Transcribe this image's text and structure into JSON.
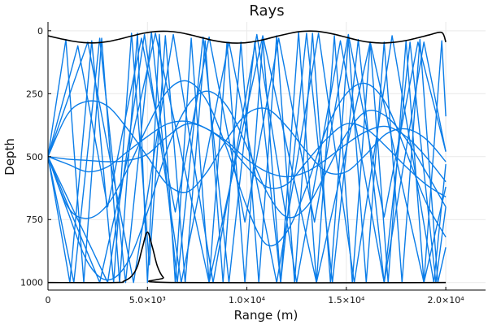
{
  "chart_data": {
    "type": "line",
    "title": "Rays",
    "xlabel": "Range (m)",
    "ylabel": "Depth",
    "xlim": [
      0,
      22000
    ],
    "ylim": [
      1030,
      -35
    ],
    "y_inverted": true,
    "grid": true,
    "legend": "none",
    "x_ticks": [
      {
        "value": 0,
        "label": "0"
      },
      {
        "value": 5000,
        "label": "5.0×10³"
      },
      {
        "value": 10000,
        "label": "1.0×10⁴"
      },
      {
        "value": 15000,
        "label": "1.5×10⁴"
      },
      {
        "value": 20000,
        "label": "2.0×10⁴"
      }
    ],
    "y_ticks": [
      {
        "value": 0,
        "label": "0"
      },
      {
        "value": 250,
        "label": "250"
      },
      {
        "value": 500,
        "label": "500"
      },
      {
        "value": 750,
        "label": "750"
      },
      {
        "value": 1000,
        "label": "1000"
      }
    ],
    "boundary_color": "#000000",
    "ray_color": "#0b7de8",
    "surface": {
      "x": [
        0,
        600,
        1200,
        1800,
        2400,
        3000,
        3600,
        4200,
        4800,
        5400,
        6000,
        6600,
        7200,
        7800,
        8400,
        9000,
        9600,
        10200,
        10800,
        11400,
        12000,
        12600,
        13200,
        13800,
        14400,
        15000,
        15600,
        16200,
        16800,
        17400,
        18000,
        18600,
        19200,
        19800,
        20000
      ],
      "y": [
        20,
        31,
        41,
        47,
        48,
        43,
        33,
        21,
        10,
        3,
        2,
        7,
        17,
        29,
        40,
        47,
        49,
        45,
        36,
        24,
        13,
        4,
        1,
        5,
        14,
        26,
        38,
        46,
        49,
        46,
        39,
        28,
        16,
        7,
        45
      ]
    },
    "seamount": {
      "x": [
        0,
        3400,
        3800,
        4200,
        4500,
        4750,
        5000,
        5250,
        5500,
        5800,
        6200,
        20000
      ],
      "y": [
        1000,
        1000,
        995,
        975,
        935,
        860,
        800,
        860,
        935,
        980,
        1000,
        1000
      ]
    },
    "steep_rays": [
      {
        "x": [
          0,
          900,
          1800,
          2700,
          3600,
          4500,
          5000,
          5600,
          6400,
          7200,
          8100,
          9000,
          9900,
          10800,
          11700,
          12600,
          13500,
          14400,
          15300,
          16200,
          17100,
          18000,
          18900,
          19800,
          20000
        ],
        "y": [
          500,
          35,
          1000,
          30,
          1000,
          10,
          1000,
          15,
          1000,
          30,
          1000,
          45,
          1000,
          35,
          1000,
          5,
          1000,
          20,
          1000,
          45,
          1000,
          40,
          1000,
          40,
          340
        ]
      },
      {
        "x": [
          0,
          1100,
          2200,
          3300,
          4200,
          5100,
          5900,
          6900,
          7900,
          8800,
          9700,
          10600,
          11500,
          12400,
          13300,
          14200,
          15100,
          16000,
          16900,
          17800,
          18700,
          19600,
          20000
        ],
        "y": [
          500,
          1000,
          40,
          1000,
          10,
          930,
          20,
          1000,
          40,
          1000,
          45,
          1000,
          20,
          1000,
          10,
          1000,
          30,
          1000,
          45,
          1000,
          35,
          1000,
          860
        ]
      },
      {
        "x": [
          0,
          2000,
          4300,
          6300,
          8300,
          10500,
          12500,
          14700,
          16900,
          18900,
          20000
        ],
        "y": [
          500,
          45,
          1000,
          15,
          1000,
          15,
          1000,
          40,
          1000,
          45,
          480
        ]
      },
      {
        "x": [
          0,
          2600,
          5400,
          8100,
          10800,
          13500,
          16200,
          18900,
          20000
        ],
        "y": [
          500,
          1000,
          10,
          1000,
          20,
          1000,
          45,
          1000,
          620
        ]
      },
      {
        "x": [
          0,
          1500,
          3000,
          4700,
          6400,
          8100,
          9900,
          11600,
          13400,
          15100,
          16900,
          18600,
          20000
        ],
        "y": [
          500,
          60,
          700,
          30,
          720,
          25,
          760,
          30,
          760,
          15,
          740,
          45,
          480
        ]
      },
      {
        "x": [
          0,
          3000,
          4850,
          6700,
          9100,
          11500,
          13600,
          15400,
          17300,
          19400,
          20000
        ],
        "y": [
          500,
          1000,
          15,
          1000,
          45,
          1000,
          10,
          1000,
          20,
          1000,
          530
        ]
      },
      {
        "x": [
          0,
          1300,
          2600,
          3900,
          5200,
          6500,
          7800,
          9100,
          10400,
          11700,
          13000,
          14300,
          15600,
          16900,
          18200,
          19500,
          20000
        ],
        "y": [
          500,
          1000,
          30,
          1000,
          5,
          1000,
          25,
          1000,
          45,
          1000,
          10,
          1000,
          35,
          1000,
          45,
          1000,
          700
        ]
      }
    ],
    "smooth_rays": [
      {
        "x": [
          0,
          1000,
          2000,
          3000,
          4000,
          5000,
          6000,
          7000,
          8000,
          9000,
          10000,
          11000,
          12000,
          13000,
          14000,
          15000,
          16000,
          17000,
          18000,
          19000,
          20000
        ],
        "y": [
          500,
          330,
          280,
          300,
          390,
          500,
          610,
          640,
          560,
          430,
          330,
          310,
          380,
          480,
          560,
          560,
          490,
          410,
          390,
          430,
          520
        ]
      },
      {
        "x": [
          0,
          1000,
          2000,
          3000,
          4000,
          5000,
          6000,
          7000,
          8000,
          9000,
          10000,
          11000,
          12000,
          13000,
          14000,
          15000,
          16000,
          17000,
          18000,
          19000,
          20000
        ],
        "y": [
          500,
          700,
          745,
          690,
          550,
          380,
          240,
          200,
          280,
          470,
          700,
          850,
          800,
          620,
          390,
          250,
          210,
          290,
          480,
          680,
          820
        ]
      },
      {
        "x": [
          0,
          1000,
          2000,
          3000,
          4000,
          5000,
          6000,
          7000,
          8000,
          9000,
          10000,
          11000,
          12000,
          13000,
          14000,
          15000,
          16000,
          17000,
          18000,
          19000,
          20000
        ],
        "y": [
          500,
          510,
          515,
          520,
          515,
          490,
          420,
          370,
          390,
          450,
          540,
          620,
          610,
          520,
          430,
          370,
          390,
          460,
          540,
          610,
          660
        ]
      },
      {
        "x": [
          0,
          1000,
          2000,
          3000,
          4000,
          5000,
          6000,
          7000,
          8000,
          9000,
          10000,
          11000,
          12000,
          13000,
          14000,
          15000,
          16000,
          17000,
          18000,
          19000,
          20000
        ],
        "y": [
          500,
          530,
          560,
          540,
          480,
          420,
          370,
          360,
          390,
          440,
          510,
          560,
          580,
          560,
          510,
          450,
          400,
          380,
          420,
          500,
          600
        ]
      },
      {
        "x": [
          0,
          1000,
          2000,
          3000,
          4000,
          5000,
          6000,
          7000,
          8000,
          9000,
          10000,
          11000,
          12000,
          13000,
          14000,
          15000,
          16000,
          17000,
          18000,
          19000,
          20000
        ],
        "y": [
          500,
          720,
          920,
          990,
          920,
          720,
          470,
          300,
          240,
          300,
          460,
          640,
          740,
          700,
          560,
          410,
          320,
          340,
          430,
          560,
          700
        ]
      }
    ]
  }
}
